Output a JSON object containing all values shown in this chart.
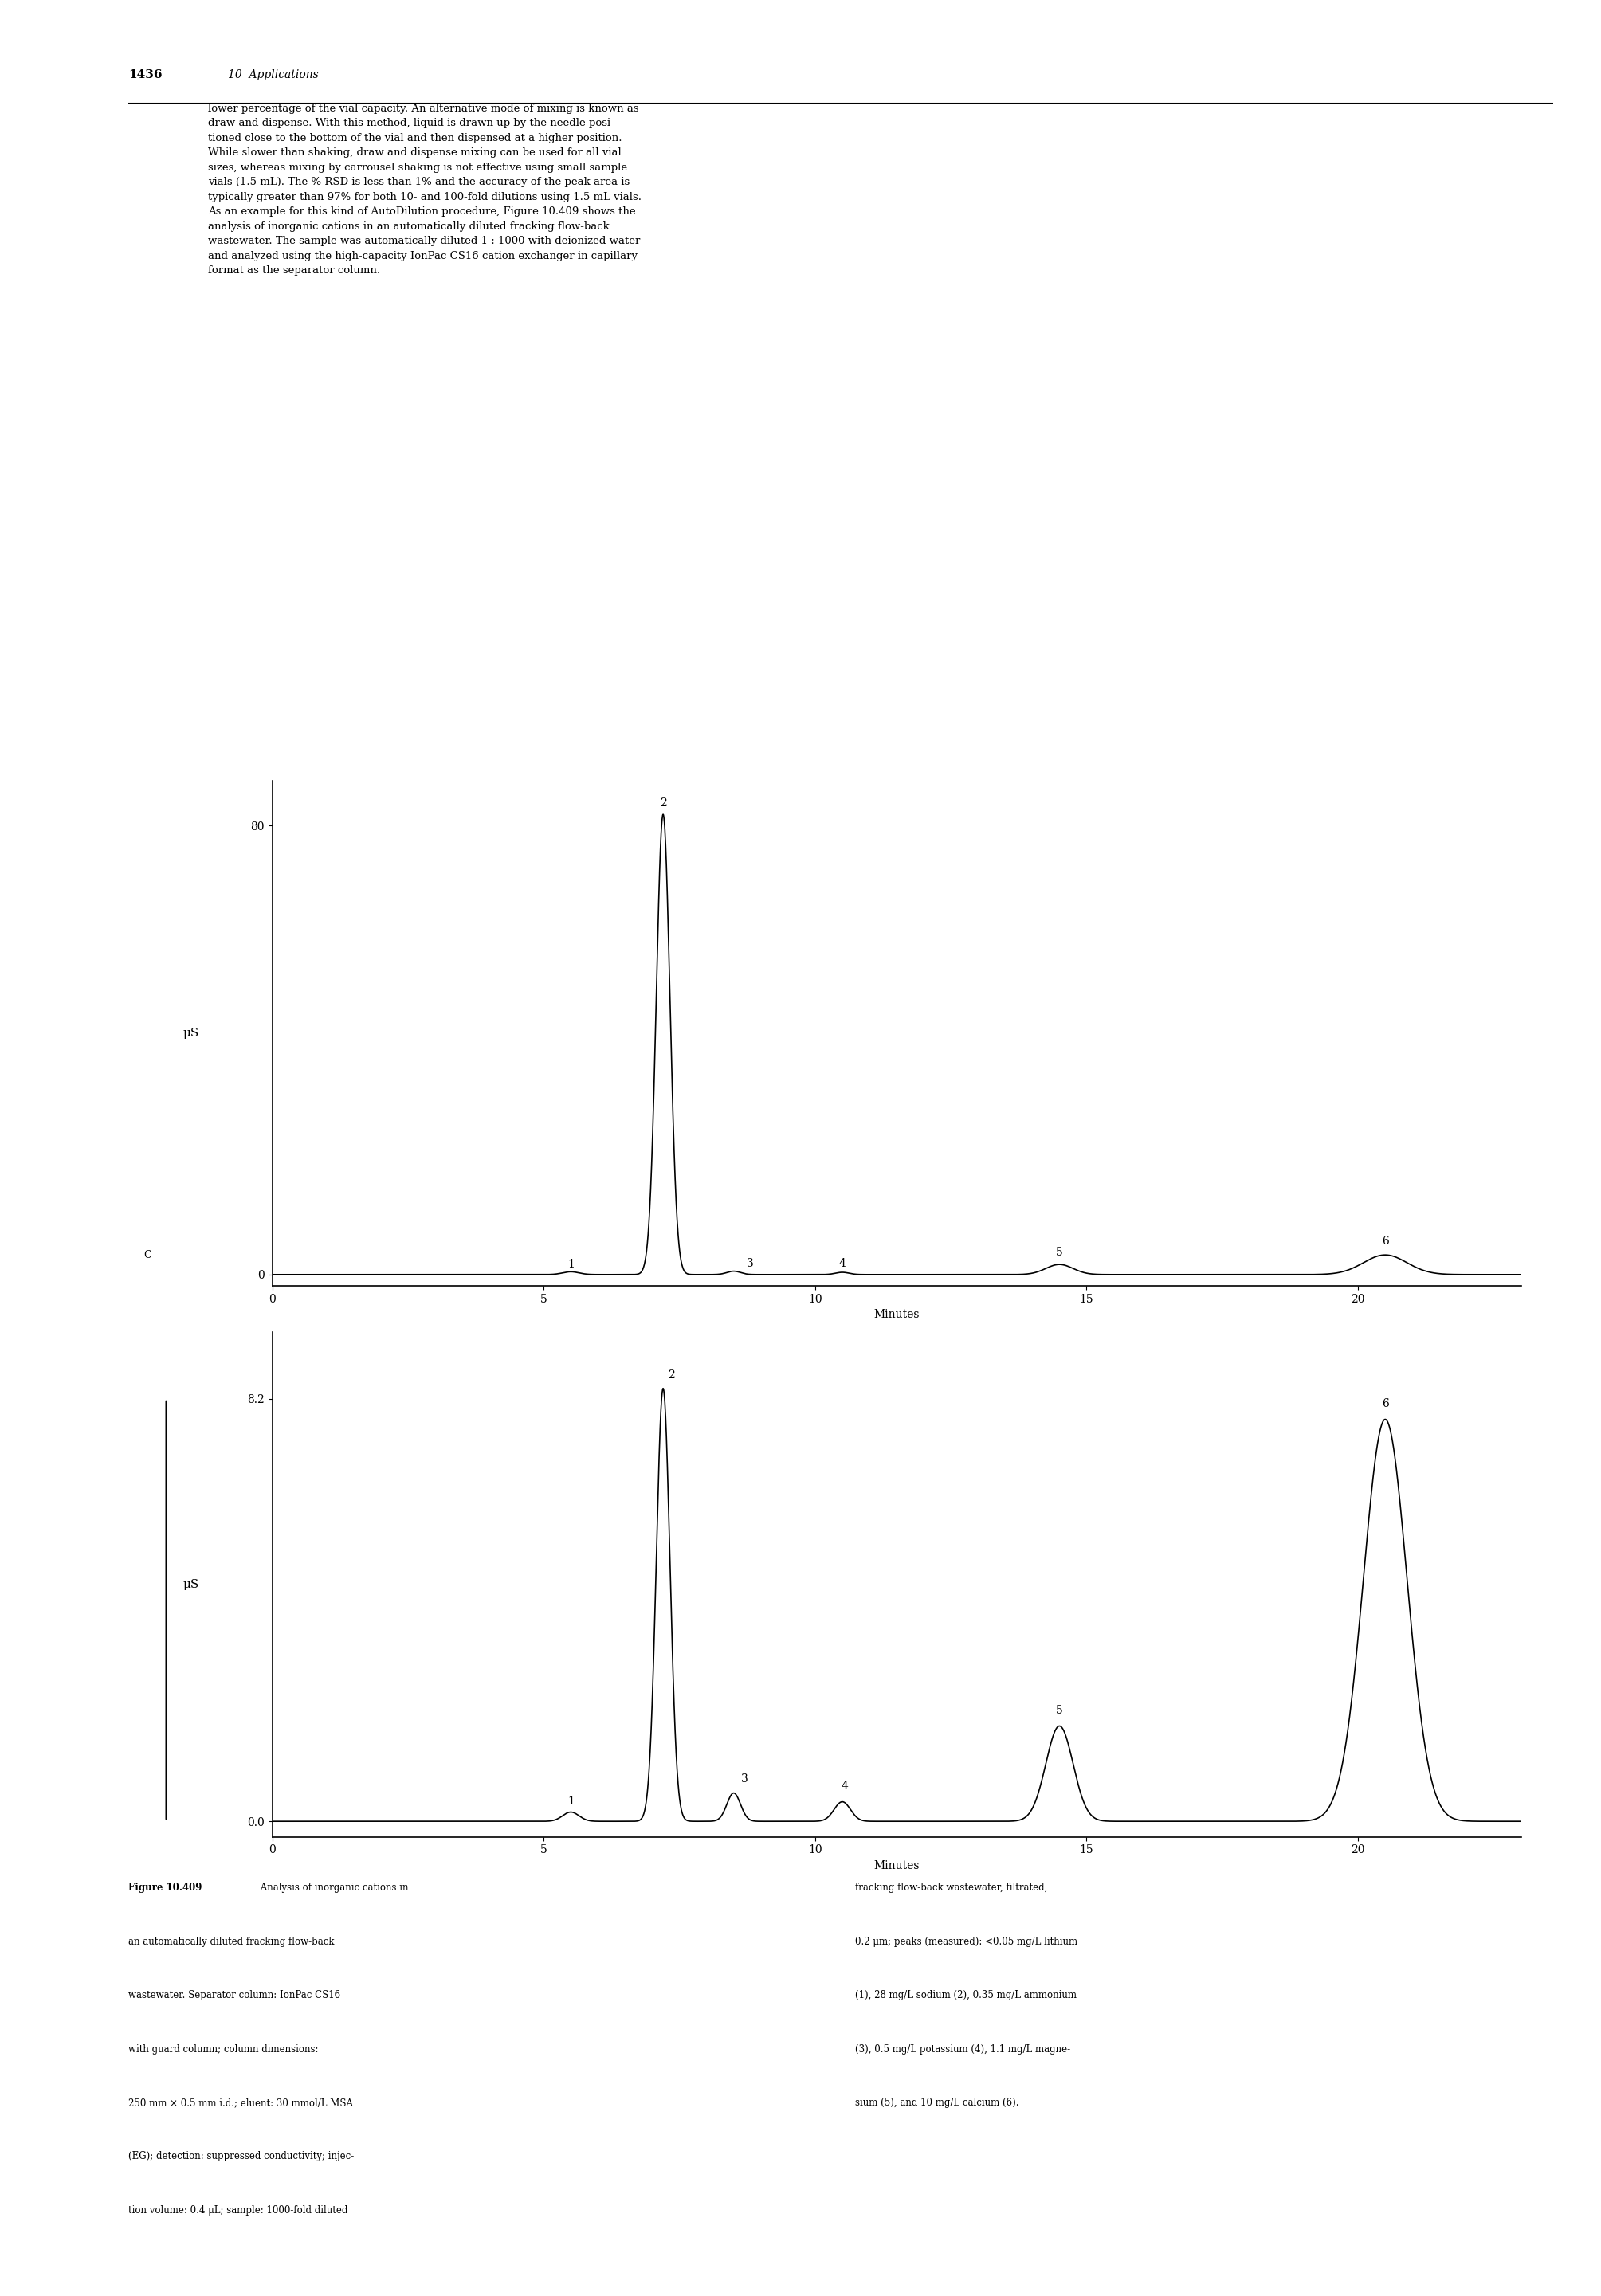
{
  "page_number": "1436",
  "chapter": "10 Applications",
  "body_text": [
    "lower percentage of the vial capacity. An alternative mode of mixing is known as",
    "draw and dispense. With this method, liquid is drawn up by the needle posi-",
    "tioned close to the bottom of the vial and then dispensed at a higher position.",
    "While slower than shaking, draw and dispense mixing can be used for all vial",
    "sizes, whereas mixing by carrousel shaking is not effective using small sample",
    "vials (1.5 mL). The % RSD is less than 1% and the accuracy of the peak area is",
    "typically greater than 97% for both 10- and 100-fold dilutions using 1.5 mL vials.",
    "As an example for this kind of AutoDilution procedure, Figure 10.409 shows the",
    "analysis of inorganic cations in an automatically diluted fracking flow-back",
    "wastewater. The sample was automatically diluted 1 : 1000 with deionized water",
    "and analyzed using the high-capacity IonPac CS16 cation exchanger in capillary",
    "format as the separator column."
  ],
  "caption_left": "Figure 10.409 Analysis of inorganic cations in\nan automatically diluted fracking flow-back\nwastewater. Separator column: IonPac CS16\nwith guard column; column dimensions:\n250 mm × 0.5 mm i.d.; eluent: 30 mmol/L MSA\n(EG); detection: suppressed conductivity; injec-\ntion volume: 0.4 μL; sample: 1000-fold diluted",
  "caption_right": "fracking flow-back wastewater, filtrated,\n0.2 μm; peaks (measured): <0.05 mg/L lithium\n(1), 28 mg/L sodium (2), 0.35 mg/L ammonium\n(3), 0.5 mg/L potassium (4), 1.1 mg/L magne-\nsium (5), and 10 mg/L calcium (6).",
  "top_plot": {
    "ylabel": "μS",
    "xlabel": "Minutes",
    "ytick_top": "80",
    "ytick_bottom": "0",
    "xmin": 0,
    "xmax": 23,
    "peak_labels": [
      "1",
      "2",
      "3",
      "4",
      "5",
      "6"
    ],
    "peak_times": [
      5.5,
      7.2,
      8.5,
      10.5,
      14.5,
      20.5
    ],
    "peak_heights": [
      0.5,
      82,
      0.6,
      0.4,
      1.8,
      3.5
    ],
    "peak_widths": [
      0.3,
      0.25,
      0.25,
      0.25,
      0.5,
      0.8
    ],
    "baseline": 0.0,
    "ymin": -2,
    "ymax": 88
  },
  "bottom_plot": {
    "ylabel": "μS",
    "xlabel": "Minutes",
    "ytick_top": "8.2",
    "ytick_bottom": "0.0",
    "xmin": 0,
    "xmax": 23,
    "peak_labels": [
      "1",
      "2",
      "3",
      "4",
      "5",
      "6"
    ],
    "peak_times": [
      5.5,
      7.2,
      8.5,
      10.5,
      14.5,
      20.5
    ],
    "peak_heights": [
      0.18,
      8.4,
      0.55,
      0.38,
      1.85,
      7.8
    ],
    "peak_widths": [
      0.3,
      0.25,
      0.25,
      0.3,
      0.5,
      0.8
    ],
    "baseline": 0.0,
    "ymin": -0.3,
    "ymax": 9.5
  },
  "background_color": "#ffffff",
  "text_color": "#000000",
  "line_color": "#000000"
}
